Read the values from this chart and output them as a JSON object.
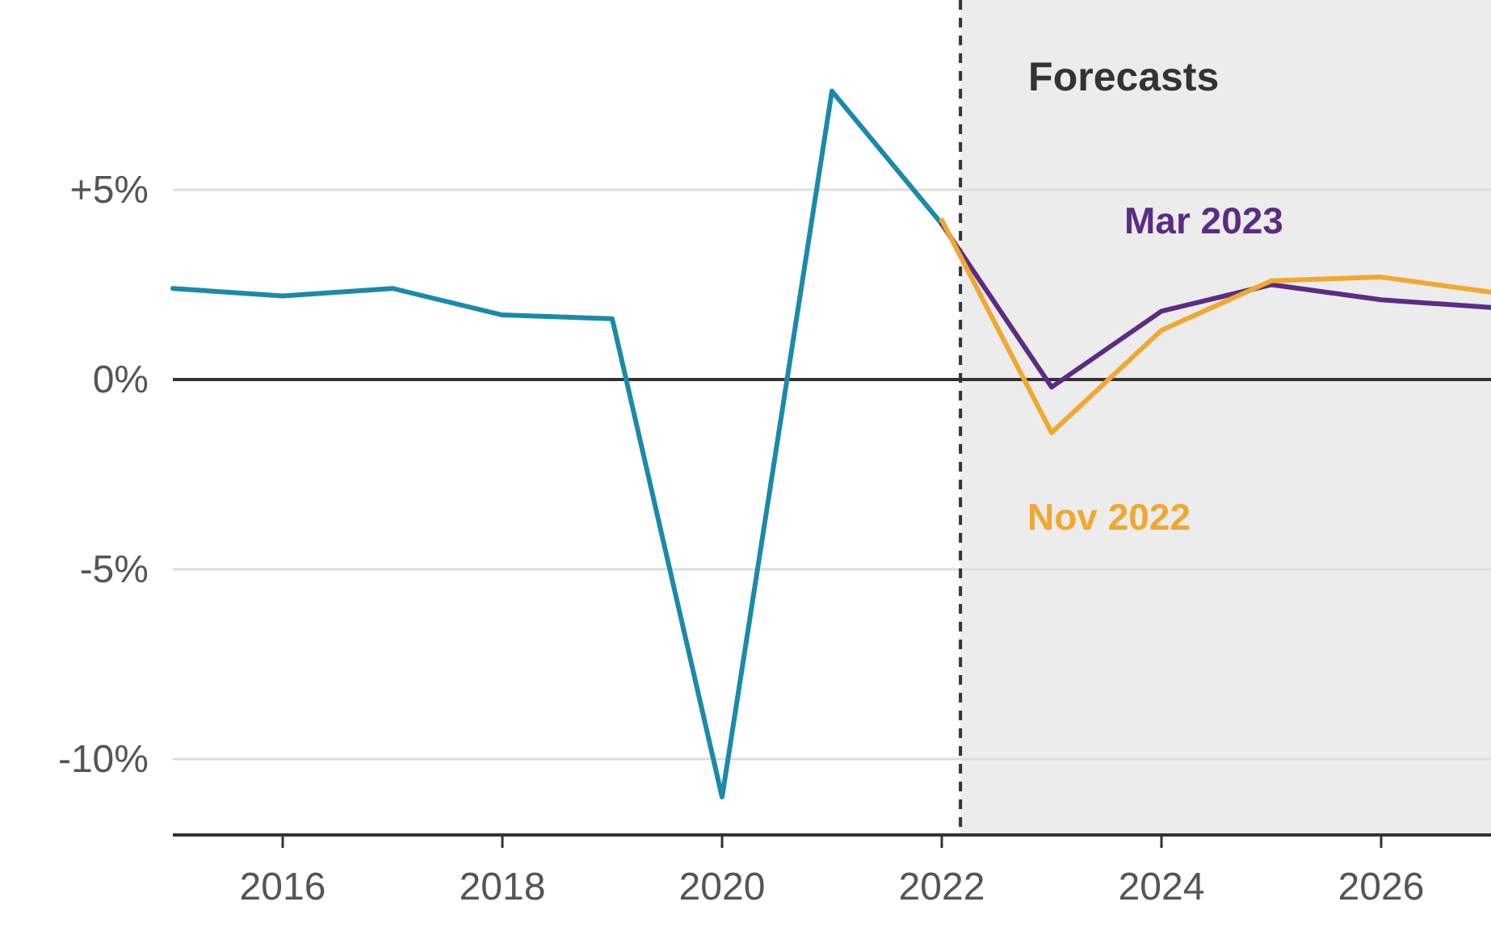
{
  "chart_data": {
    "type": "line",
    "x": [
      2015,
      2016,
      2017,
      2018,
      2019,
      2020,
      2021,
      2022
    ],
    "series": [
      {
        "color": "#1b8aa8",
        "values": [
          2.4,
          2.2,
          2.4,
          1.7,
          1.6,
          -11.0,
          7.6,
          4.1
        ]
      },
      {
        "name": "Mar 2023",
        "color": "#5b2c83",
        "x": [
          2022,
          2023,
          2024,
          2025,
          2026,
          2027
        ],
        "values": [
          4.1,
          -0.2,
          1.8,
          2.5,
          2.1,
          1.9
        ]
      },
      {
        "name": "Nov 2022",
        "color": "#f0a830",
        "x": [
          2022,
          2023,
          2024,
          2025,
          2026,
          2027
        ],
        "values": [
          4.2,
          -1.4,
          1.3,
          2.6,
          2.7,
          2.3
        ]
      }
    ],
    "xlim": [
      2015,
      2027
    ],
    "xticks": [
      2016,
      2018,
      2020,
      2022,
      2024,
      2026
    ],
    "ylim": [
      -12,
      10
    ],
    "yticks": [
      {
        "value": 5,
        "label": "+5%"
      },
      {
        "value": 0,
        "label": "0%"
      },
      {
        "value": -5,
        "label": "-5%"
      },
      {
        "value": -10,
        "label": "-10%"
      }
    ],
    "grid": "y",
    "line_style": "solid",
    "bands": [
      {
        "axis": "x",
        "from": 2022.17,
        "to": 2027,
        "label": "Forecasts",
        "color": "#ececec"
      }
    ],
    "ref_lines": [
      {
        "axis": "x",
        "value": 2022.17,
        "color": "#333333",
        "line_style": "dashed"
      },
      {
        "axis": "y",
        "value": 0,
        "color": "#333333",
        "line_style": "solid"
      }
    ]
  }
}
